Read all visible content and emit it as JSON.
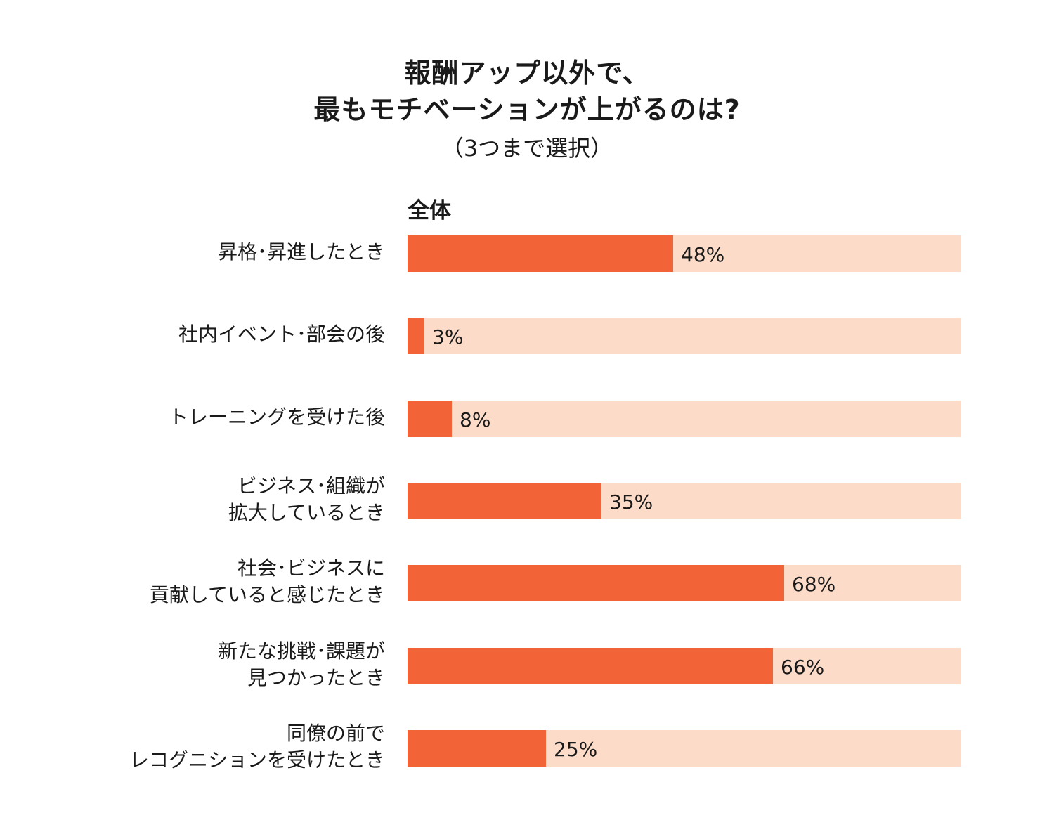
{
  "title_lines": [
    "報酬アップ以外で、",
    "最もモチベーションが上がるのは?"
  ],
  "subtitle": "（3つまで選択）",
  "group_label": "全体",
  "colors": {
    "bar": "#f26338",
    "track": "#fcdcc8"
  },
  "chart_data": {
    "type": "bar",
    "orientation": "horizontal",
    "title": "報酬アップ以外で、最もモチベーションが上がるのは?",
    "subtitle": "（3つまで選択）",
    "series": [
      {
        "name": "全体",
        "values": [
          48,
          3,
          8,
          35,
          68,
          66,
          25
        ]
      }
    ],
    "categories": [
      [
        "昇格･昇進したとき"
      ],
      [
        "社内イベント･部会の後"
      ],
      [
        "トレーニングを受けた後"
      ],
      [
        "ビジネス･組織が",
        "拡大しているとき"
      ],
      [
        "社会･ビジネスに",
        "貢献していると感じたとき"
      ],
      [
        "新たな挑戦･課題が",
        "見つかったとき"
      ],
      [
        "同僚の前で",
        "レコグニションを受けたとき"
      ]
    ],
    "value_labels": [
      "48%",
      "3%",
      "8%",
      "35%",
      "68%",
      "66%",
      "25%"
    ],
    "xlim": [
      0,
      100
    ]
  }
}
